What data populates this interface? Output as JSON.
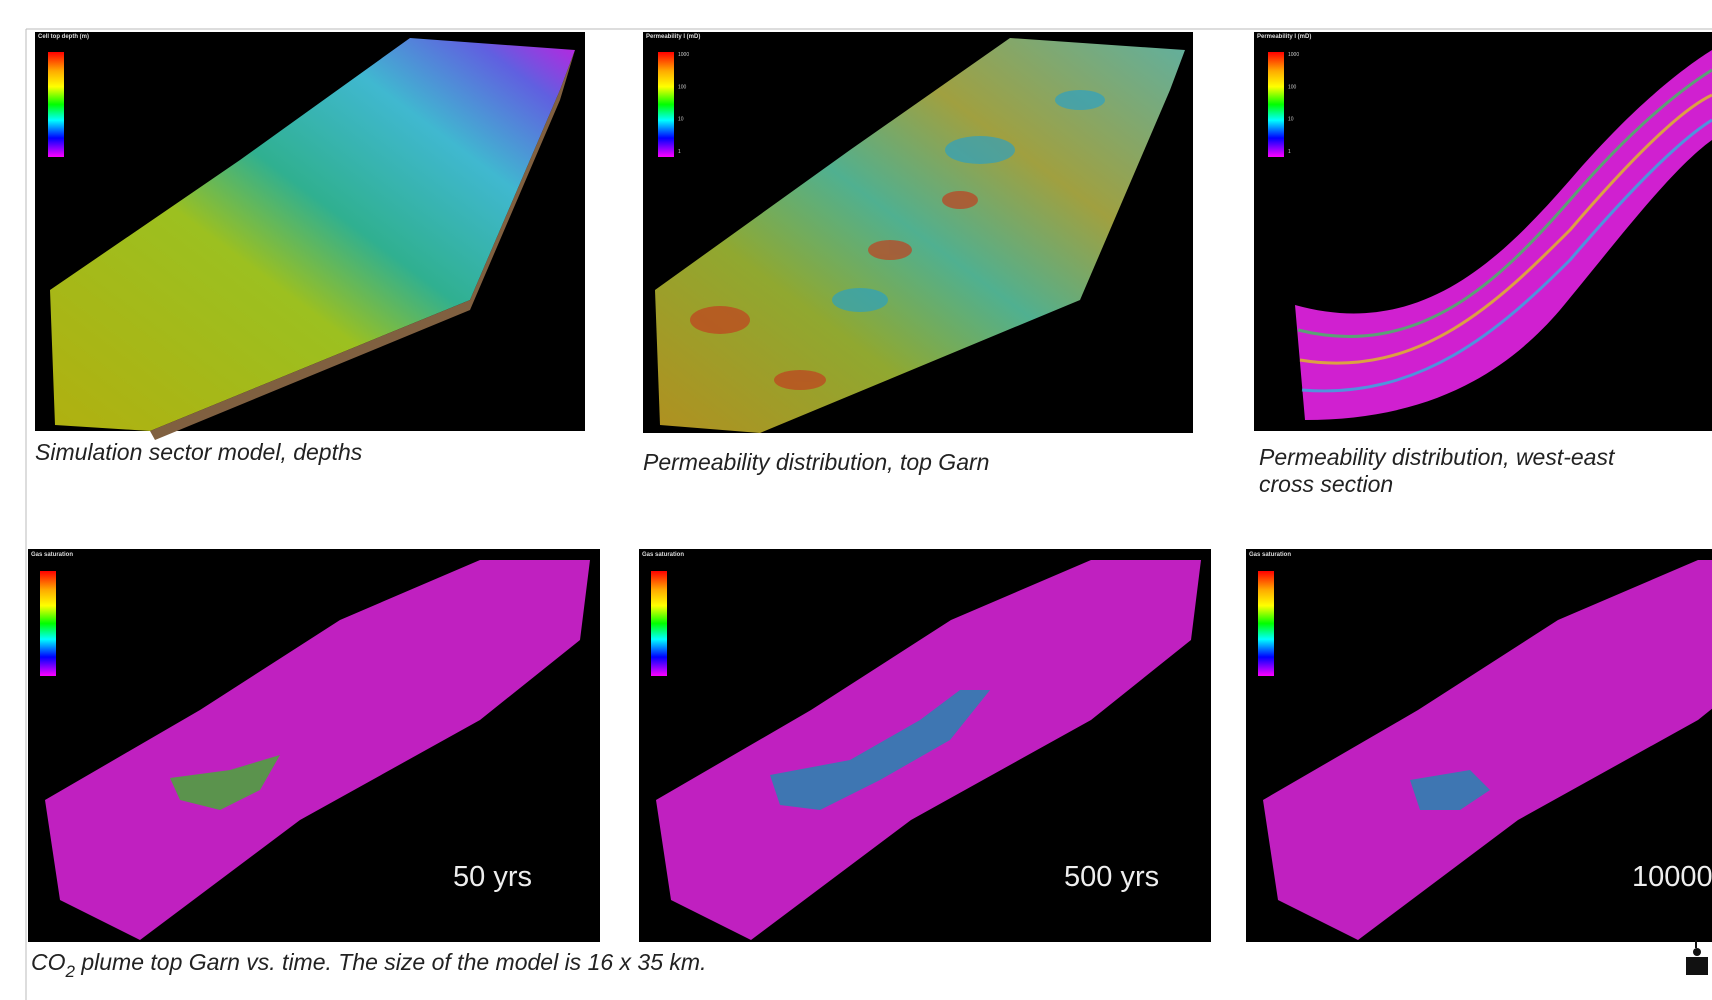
{
  "panels": [
    {
      "legend_title": "Cell top depth (m)",
      "caption": "Simulation sector model, depths"
    },
    {
      "legend_title": "Permeability I (mD)",
      "legend_ticks": [
        "1000",
        "100",
        "10",
        "1"
      ],
      "caption": "Permeability distribution, top Garn"
    },
    {
      "legend_title": "Permeability I (mD)",
      "legend_ticks": [
        "1000",
        "100",
        "10",
        "1"
      ],
      "caption_lines": [
        "Permeability distribution, west-east",
        "cross section"
      ]
    },
    {
      "legend_title": "Gas saturation",
      "time_label": "50 yrs"
    },
    {
      "legend_title": "Gas saturation",
      "time_label": "500 yrs"
    },
    {
      "legend_title": "Gas saturation",
      "time_label": "10000"
    }
  ],
  "footer": {
    "prefix": "CO",
    "subscript": "2",
    "text": " plume top Garn vs. time. The size of the model is 16 x 35 km."
  }
}
